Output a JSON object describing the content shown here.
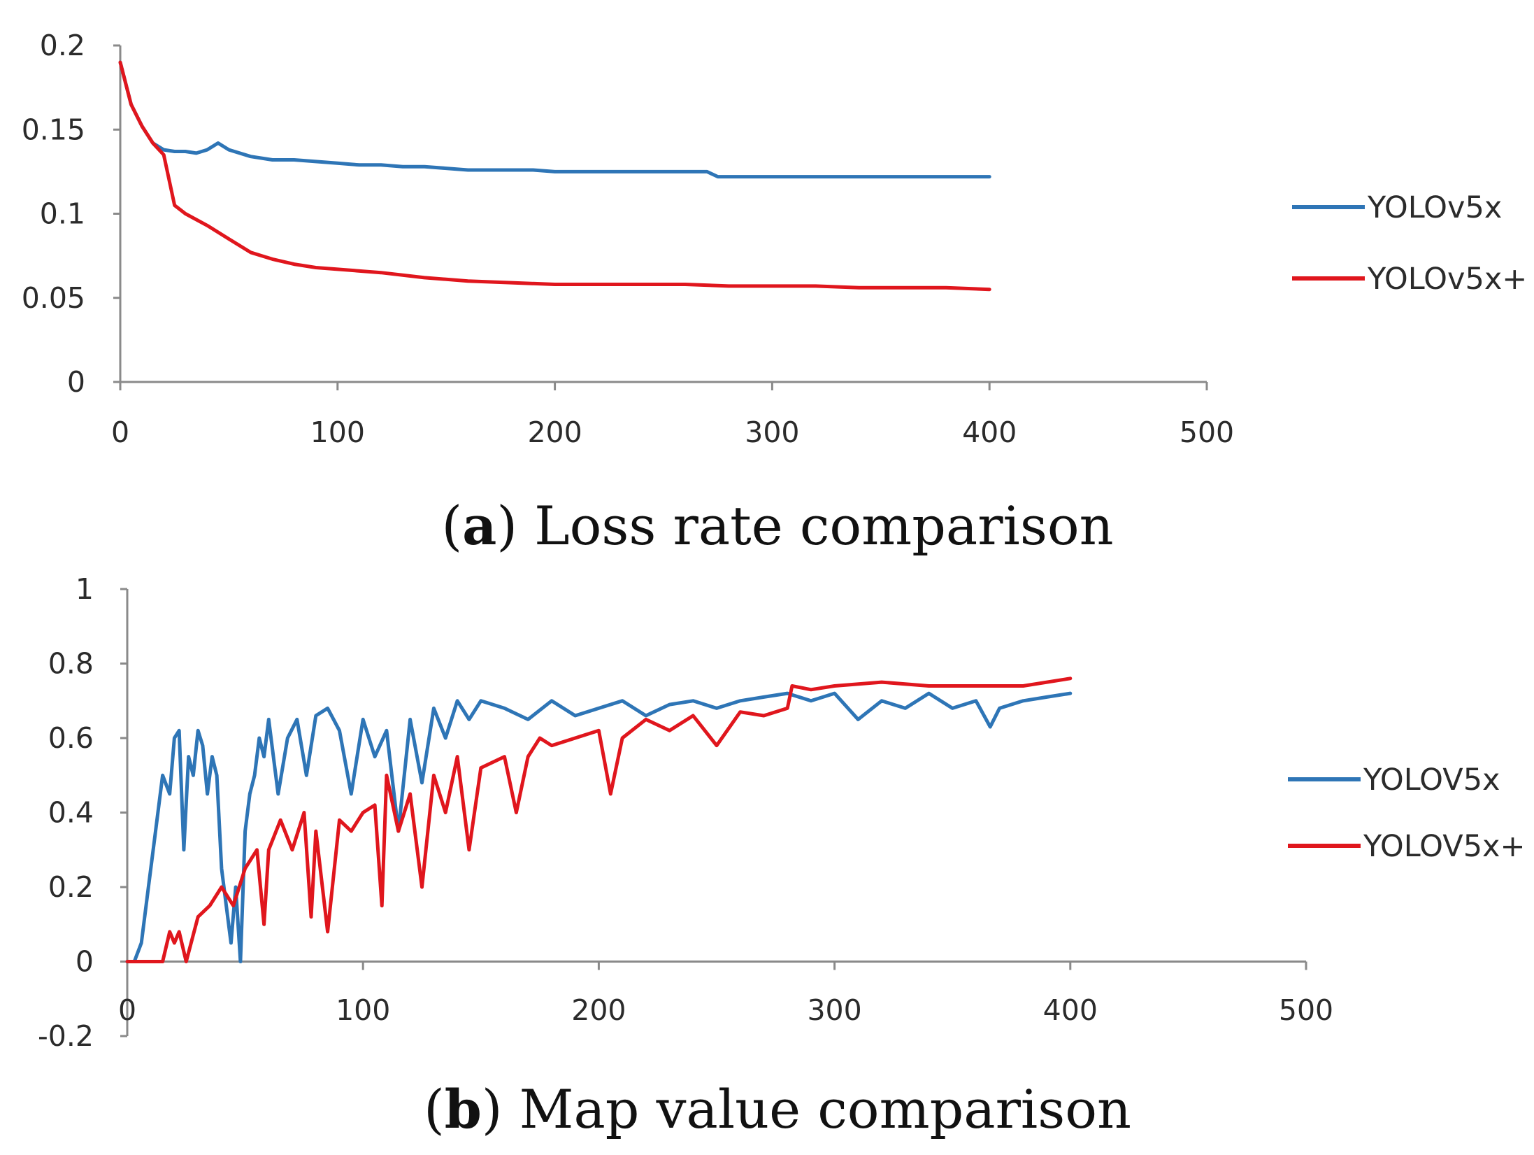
{
  "chart_data": [
    {
      "type": "line",
      "caption_letter": "a",
      "caption_text": "Loss rate comparison",
      "title": "Loss rate comparison",
      "xlabel": "",
      "ylabel": "",
      "xlim": [
        0,
        500
      ],
      "ylim": [
        0,
        0.2
      ],
      "x_ticks": [
        0,
        100,
        200,
        300,
        400,
        500
      ],
      "x_tick_labels": [
        "0",
        "100",
        "200",
        "300",
        "400",
        "500"
      ],
      "y_ticks": [
        0,
        0.05,
        0.1,
        0.15,
        0.2
      ],
      "y_tick_labels": [
        "0",
        "0.05",
        "0.1",
        "0.15",
        "0.2"
      ],
      "grid": false,
      "legend_position": "right",
      "series": [
        {
          "name": "YOLOv5x",
          "color": "#2e75b6",
          "x": [
            0,
            5,
            10,
            15,
            20,
            25,
            30,
            35,
            40,
            45,
            50,
            60,
            70,
            80,
            90,
            100,
            110,
            120,
            130,
            140,
            150,
            160,
            170,
            180,
            190,
            200,
            210,
            220,
            230,
            240,
            250,
            260,
            270,
            275,
            280,
            300,
            320,
            340,
            360,
            380,
            400
          ],
          "values": [
            0.19,
            0.165,
            0.152,
            0.142,
            0.138,
            0.137,
            0.137,
            0.136,
            0.138,
            0.142,
            0.138,
            0.134,
            0.132,
            0.132,
            0.131,
            0.13,
            0.129,
            0.129,
            0.128,
            0.128,
            0.127,
            0.126,
            0.126,
            0.126,
            0.126,
            0.125,
            0.125,
            0.125,
            0.125,
            0.125,
            0.125,
            0.125,
            0.125,
            0.122,
            0.122,
            0.122,
            0.122,
            0.122,
            0.122,
            0.122,
            0.122
          ]
        },
        {
          "name": "YOLOv5x+",
          "color": "#e0161d",
          "x": [
            0,
            5,
            10,
            15,
            20,
            25,
            30,
            40,
            50,
            60,
            70,
            80,
            90,
            100,
            120,
            140,
            160,
            180,
            200,
            220,
            240,
            260,
            280,
            300,
            320,
            340,
            360,
            380,
            400
          ],
          "values": [
            0.19,
            0.165,
            0.152,
            0.142,
            0.135,
            0.105,
            0.1,
            0.093,
            0.085,
            0.077,
            0.073,
            0.07,
            0.068,
            0.067,
            0.065,
            0.062,
            0.06,
            0.059,
            0.058,
            0.058,
            0.058,
            0.058,
            0.057,
            0.057,
            0.057,
            0.056,
            0.056,
            0.056,
            0.055
          ]
        }
      ]
    },
    {
      "type": "line",
      "caption_letter": "b",
      "caption_text": "Map value comparison",
      "title": "Map value comparison",
      "xlabel": "",
      "ylabel": "",
      "xlim": [
        0,
        500
      ],
      "ylim": [
        -0.2,
        1
      ],
      "x_ticks": [
        0,
        100,
        200,
        300,
        400,
        500
      ],
      "x_tick_labels": [
        "0",
        "100",
        "200",
        "300",
        "400",
        "500"
      ],
      "y_ticks": [
        -0.2,
        0,
        0.2,
        0.4,
        0.6,
        0.8,
        1
      ],
      "y_tick_labels": [
        "-0.2",
        "0",
        "0.2",
        "0.4",
        "0.6",
        "0.8",
        "1"
      ],
      "grid": false,
      "legend_position": "right",
      "series": [
        {
          "name": "YOLOV5x",
          "color": "#2e75b6",
          "x": [
            0,
            3,
            6,
            9,
            12,
            15,
            18,
            20,
            22,
            24,
            26,
            28,
            30,
            32,
            34,
            36,
            38,
            40,
            42,
            44,
            46,
            48,
            50,
            52,
            54,
            56,
            58,
            60,
            64,
            68,
            72,
            76,
            80,
            85,
            90,
            95,
            100,
            105,
            110,
            115,
            120,
            125,
            130,
            135,
            140,
            145,
            150,
            160,
            170,
            180,
            190,
            200,
            210,
            220,
            230,
            240,
            250,
            260,
            270,
            280,
            290,
            300,
            310,
            320,
            330,
            340,
            350,
            360,
            366,
            370,
            380,
            390,
            400
          ],
          "values": [
            0,
            0,
            0.05,
            0.2,
            0.35,
            0.5,
            0.45,
            0.6,
            0.62,
            0.3,
            0.55,
            0.5,
            0.62,
            0.58,
            0.45,
            0.55,
            0.5,
            0.25,
            0.15,
            0.05,
            0.2,
            0.0,
            0.35,
            0.45,
            0.5,
            0.6,
            0.55,
            0.65,
            0.45,
            0.6,
            0.65,
            0.5,
            0.66,
            0.68,
            0.62,
            0.45,
            0.65,
            0.55,
            0.62,
            0.35,
            0.65,
            0.48,
            0.68,
            0.6,
            0.7,
            0.65,
            0.7,
            0.68,
            0.65,
            0.7,
            0.66,
            0.68,
            0.7,
            0.66,
            0.69,
            0.7,
            0.68,
            0.7,
            0.71,
            0.72,
            0.7,
            0.72,
            0.65,
            0.7,
            0.68,
            0.72,
            0.68,
            0.7,
            0.63,
            0.68,
            0.7,
            0.71,
            0.72
          ]
        },
        {
          "name": "YOLOV5x+",
          "color": "#e0161d",
          "x": [
            0,
            10,
            15,
            18,
            20,
            22,
            25,
            30,
            35,
            40,
            45,
            50,
            55,
            58,
            60,
            65,
            70,
            75,
            78,
            80,
            85,
            90,
            95,
            100,
            105,
            108,
            110,
            115,
            120,
            125,
            130,
            135,
            140,
            145,
            150,
            160,
            165,
            170,
            175,
            180,
            190,
            200,
            205,
            210,
            220,
            230,
            240,
            250,
            260,
            270,
            280,
            282,
            290,
            300,
            320,
            340,
            360,
            380,
            400
          ],
          "values": [
            0,
            0,
            0.0,
            0.08,
            0.05,
            0.08,
            0.0,
            0.12,
            0.15,
            0.2,
            0.15,
            0.25,
            0.3,
            0.1,
            0.3,
            0.38,
            0.3,
            0.4,
            0.12,
            0.35,
            0.08,
            0.38,
            0.35,
            0.4,
            0.42,
            0.15,
            0.5,
            0.35,
            0.45,
            0.2,
            0.5,
            0.4,
            0.55,
            0.3,
            0.52,
            0.55,
            0.4,
            0.55,
            0.6,
            0.58,
            0.6,
            0.62,
            0.45,
            0.6,
            0.65,
            0.62,
            0.66,
            0.58,
            0.67,
            0.66,
            0.68,
            0.74,
            0.73,
            0.74,
            0.75,
            0.74,
            0.74,
            0.74,
            0.76
          ]
        }
      ]
    }
  ]
}
